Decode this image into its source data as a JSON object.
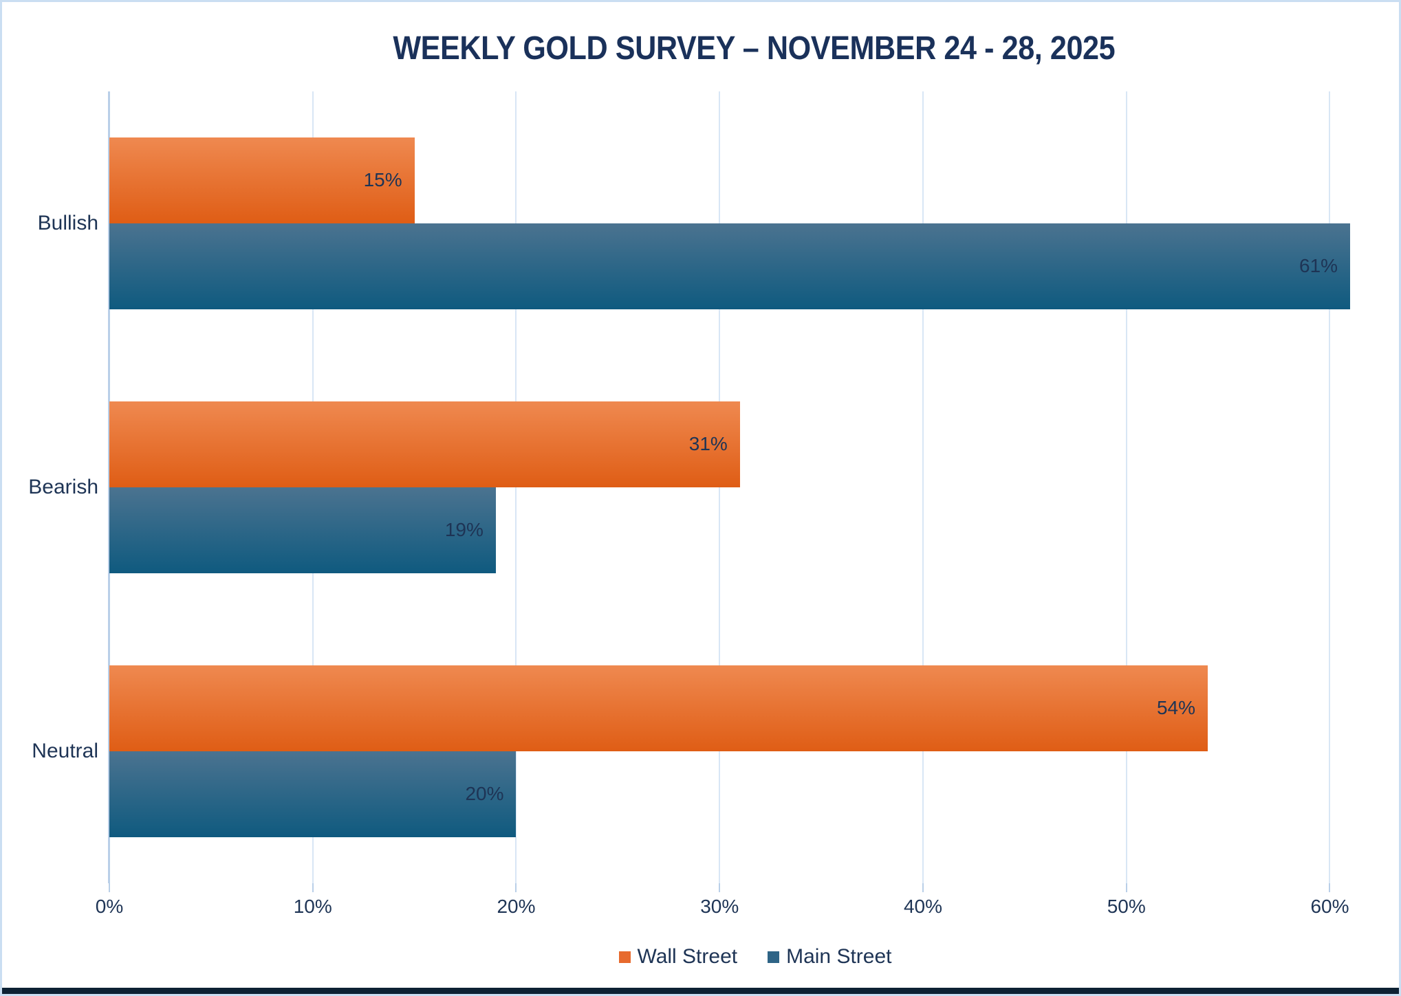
{
  "chart_data": {
    "type": "bar",
    "orientation": "horizontal",
    "title": "WEEKLY GOLD SURVEY – NOVEMBER 24 - 28, 2025",
    "categories": [
      "Bullish",
      "Bearish",
      "Neutral"
    ],
    "series": [
      {
        "name": "Wall Street",
        "values": [
          15,
          31,
          54
        ],
        "labels": [
          "15%",
          "31%",
          "54%"
        ],
        "bar_gradient_top": "#ef8950",
        "bar_gradient_bottom": "#df5d15",
        "legend_color": "#e76a2d"
      },
      {
        "name": "Main Street",
        "values": [
          61,
          19,
          20
        ],
        "labels": [
          "61%",
          "19%",
          "20%"
        ],
        "bar_gradient_top": "#4b7390",
        "bar_gradient_bottom": "#0f5a7f",
        "legend_color": "#2e6486"
      }
    ],
    "x_axis": {
      "tick_labels": [
        "0%",
        "10%",
        "20%",
        "30%",
        "40%",
        "50%",
        "60%"
      ],
      "tick_values": [
        0,
        10,
        20,
        30,
        40,
        50,
        60
      ],
      "min": 0,
      "max": 63.5
    },
    "gridlines": "vertical",
    "legend_position": "bottom",
    "colors": {
      "background": "#ffffff",
      "border": "#cadef2",
      "gridline": "#d8e6f5",
      "axis_line": "#b9cfe8",
      "text": "#1e3455",
      "title": "#1a315a",
      "bottom_strip": "#0d2133"
    }
  }
}
